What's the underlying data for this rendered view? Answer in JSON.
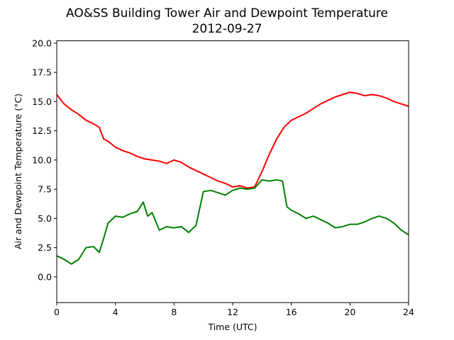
{
  "chart_data": {
    "type": "line",
    "title": "AO&SS Building Tower Air and Dewpoint Temperature",
    "subtitle": "2012-09-27",
    "xlabel": "Time (UTC)",
    "ylabel": "Air and Dewpoint Temperature (°C)",
    "xlim": [
      0,
      24
    ],
    "ylim": [
      -2.2,
      20.2
    ],
    "xticks": [
      0,
      4,
      8,
      12,
      16,
      20,
      24
    ],
    "yticks": [
      0.0,
      2.5,
      5.0,
      7.5,
      10.0,
      12.5,
      15.0,
      17.5,
      20.0
    ],
    "grid": false,
    "series": [
      {
        "color": "#ff0000",
        "x": [
          0,
          0.5,
          1,
          1.5,
          2,
          2.5,
          2.9,
          3.2,
          3.5,
          4,
          4.5,
          5,
          5.5,
          6,
          6.5,
          7,
          7.5,
          8,
          8.5,
          9,
          9.5,
          10,
          10.5,
          11,
          11.5,
          12,
          12.5,
          13,
          13.5,
          14,
          14.5,
          15,
          15.5,
          16,
          16.5,
          17,
          17.5,
          18,
          18.5,
          19,
          19.5,
          20,
          20.5,
          21,
          21.5,
          22,
          22.5,
          23,
          23.5,
          24
        ],
        "y": [
          15.6,
          14.8,
          14.3,
          13.9,
          13.4,
          13.1,
          12.8,
          11.8,
          11.6,
          11.1,
          10.8,
          10.6,
          10.3,
          10.1,
          10.0,
          9.9,
          9.7,
          10.0,
          9.8,
          9.4,
          9.1,
          8.8,
          8.5,
          8.2,
          8.0,
          7.7,
          7.8,
          7.6,
          7.7,
          9.0,
          10.5,
          11.8,
          12.8,
          13.4,
          13.7,
          14.0,
          14.4,
          14.8,
          15.1,
          15.4,
          15.6,
          15.8,
          15.7,
          15.5,
          15.6,
          15.5,
          15.3,
          15.0,
          14.8,
          14.6
        ]
      },
      {
        "color": "#008000",
        "x": [
          0,
          0.5,
          1,
          1.5,
          2,
          2.5,
          2.9,
          3.2,
          3.5,
          4,
          4.5,
          5,
          5.5,
          5.9,
          6.2,
          6.5,
          7,
          7.5,
          8,
          8.5,
          9,
          9.5,
          10,
          10.5,
          11,
          11.5,
          12,
          12.5,
          13,
          13.5,
          14,
          14.5,
          15,
          15.4,
          15.7,
          16,
          16.5,
          17,
          17.5,
          18,
          18.5,
          19,
          19.5,
          20,
          20.5,
          21,
          21.5,
          22,
          22.5,
          23,
          23.5,
          24
        ],
        "y": [
          1.8,
          1.5,
          1.1,
          1.5,
          2.5,
          2.6,
          2.1,
          3.3,
          4.6,
          5.2,
          5.1,
          5.4,
          5.6,
          6.4,
          5.2,
          5.5,
          4.0,
          4.3,
          4.2,
          4.3,
          3.8,
          4.4,
          7.3,
          7.4,
          7.2,
          7.0,
          7.4,
          7.6,
          7.5,
          7.6,
          8.3,
          8.2,
          8.3,
          8.2,
          6.0,
          5.7,
          5.4,
          5.0,
          5.2,
          4.9,
          4.6,
          4.2,
          4.3,
          4.5,
          4.5,
          4.7,
          5.0,
          5.2,
          5.0,
          4.6,
          4.0,
          3.6
        ]
      }
    ]
  }
}
